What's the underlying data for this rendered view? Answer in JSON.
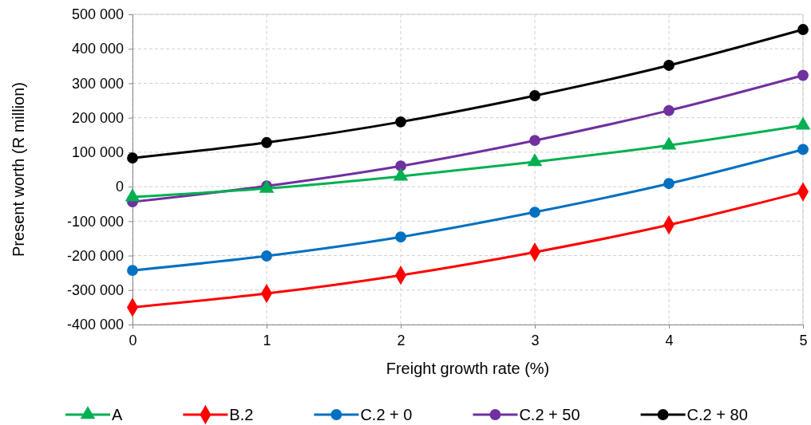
{
  "chart_data": {
    "type": "line",
    "xlabel": "Freight growth rate (%)",
    "ylabel": "Present worth (R million)",
    "x": [
      0,
      1,
      2,
      3,
      4,
      5
    ],
    "xlim": [
      0,
      5
    ],
    "xticks": [
      0,
      1,
      2,
      3,
      4,
      5
    ],
    "ylim": [
      -400000,
      500000
    ],
    "yticks": [
      {
        "value": -400000,
        "label": "-400 000"
      },
      {
        "value": -300000,
        "label": "-300 000"
      },
      {
        "value": -200000,
        "label": "-200 000"
      },
      {
        "value": -100000,
        "label": "-100 000"
      },
      0,
      {
        "value": 100000,
        "label": "100 000"
      },
      {
        "value": 200000,
        "label": "200 000"
      },
      {
        "value": 300000,
        "label": "300 000"
      },
      {
        "value": 400000,
        "label": "400 000"
      },
      {
        "value": 500000,
        "label": "500 000"
      }
    ],
    "grid": true,
    "legend": "bottom",
    "line_style": "solid",
    "series": [
      {
        "name": "A",
        "color": "#00b050",
        "marker": "triangle",
        "values": [
          -30000,
          -5000,
          30000,
          72000,
          120000,
          178000
        ]
      },
      {
        "name": "B.2",
        "color": "#ff0000",
        "marker": "diamond",
        "values": [
          -350000,
          -310000,
          -257000,
          -190000,
          -111000,
          -15000
        ]
      },
      {
        "name": "C.2 + 0",
        "color": "#0070c0",
        "marker": "circle",
        "values": [
          -243000,
          -201000,
          -146000,
          -74000,
          9000,
          108000
        ]
      },
      {
        "name": "C.2 + 50",
        "color": "#7030a0",
        "marker": "circle",
        "values": [
          -44000,
          2000,
          60000,
          134000,
          221000,
          323000
        ]
      },
      {
        "name": "C.2 + 80",
        "color": "#000000",
        "marker": "circle",
        "values": [
          83000,
          128000,
          188000,
          264000,
          352000,
          456000
        ]
      }
    ]
  }
}
